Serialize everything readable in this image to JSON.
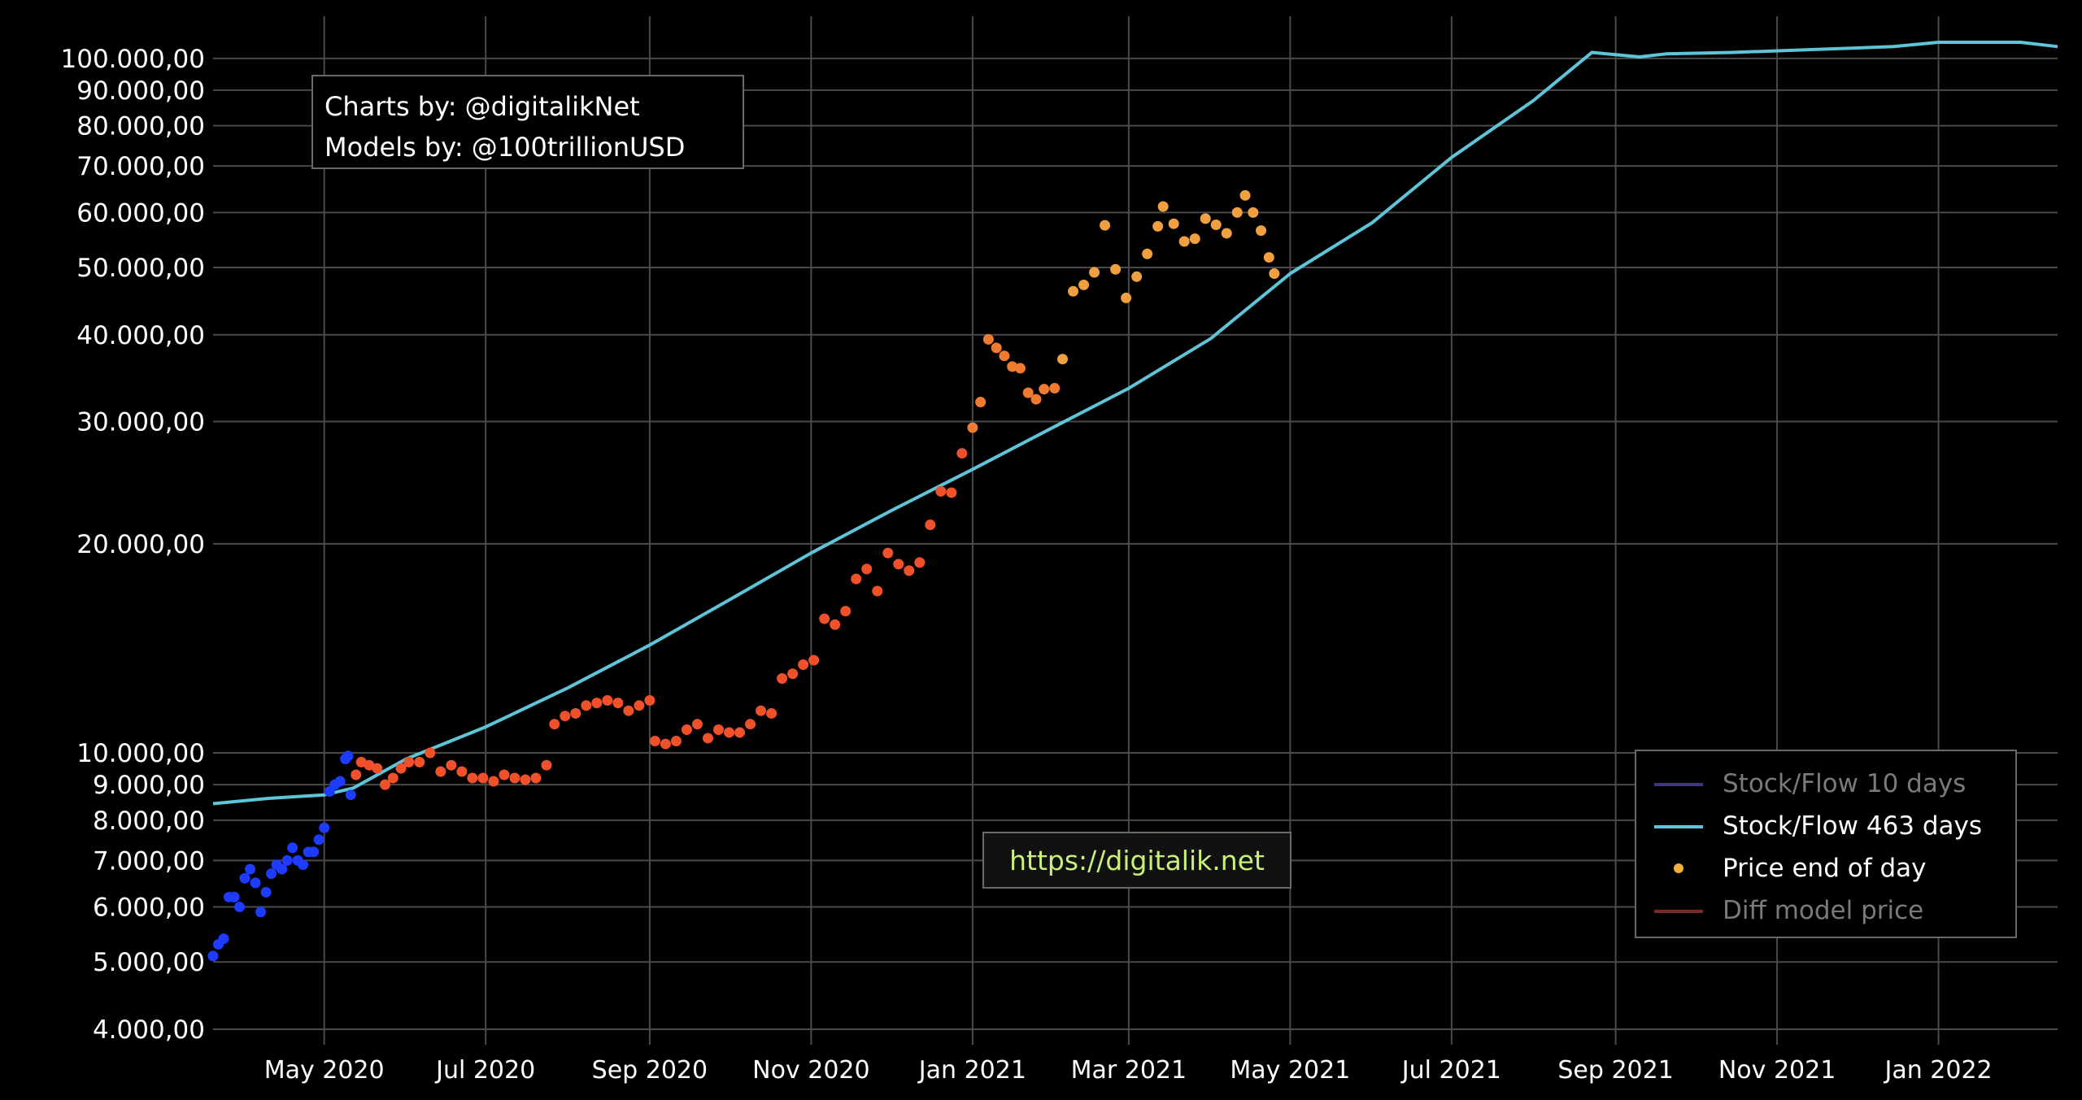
{
  "credits": {
    "charts_by": "Charts by: @digitalikNet",
    "models_by": "Models by: @100trillionUSD"
  },
  "watermark": {
    "url": "https://digitalik.net"
  },
  "legend": [
    {
      "label": "Stock/Flow 10 days",
      "color": "#3a3a7a",
      "kind": "line",
      "muted": true
    },
    {
      "label": "Stock/Flow 463 days",
      "color": "#5ec4d8",
      "kind": "line",
      "muted": false
    },
    {
      "label": "Price end of day",
      "color": "#f2b134",
      "kind": "dot",
      "muted": false
    },
    {
      "label": "Diff model price",
      "color": "#7a2a2a",
      "kind": "line",
      "muted": true
    }
  ],
  "chart_data": {
    "type": "scatter",
    "y_scale": "log",
    "xlim": [
      "2020-03-20",
      "2022-02-15"
    ],
    "ylim": [
      3800,
      115000
    ],
    "grid": true,
    "legend_position": "bottom-right",
    "x_ticks": [
      {
        "date": "2020-05-01",
        "label": "May 2020"
      },
      {
        "date": "2020-07-01",
        "label": "Jul 2020"
      },
      {
        "date": "2020-09-01",
        "label": "Sep 2020"
      },
      {
        "date": "2020-11-01",
        "label": "Nov 2020"
      },
      {
        "date": "2021-01-01",
        "label": "Jan 2021"
      },
      {
        "date": "2021-03-01",
        "label": "Mar 2021"
      },
      {
        "date": "2021-05-01",
        "label": "May 2021"
      },
      {
        "date": "2021-07-01",
        "label": "Jul 2021"
      },
      {
        "date": "2021-09-01",
        "label": "Sep 2021"
      },
      {
        "date": "2021-11-01",
        "label": "Nov 2021"
      },
      {
        "date": "2022-01-01",
        "label": "Jan 2022"
      }
    ],
    "y_ticks": [
      {
        "value": 100000,
        "label": "100.000,00"
      },
      {
        "value": 90000,
        "label": "90.000,00"
      },
      {
        "value": 80000,
        "label": "80.000,00"
      },
      {
        "value": 70000,
        "label": "70.000,00"
      },
      {
        "value": 60000,
        "label": "60.000,00"
      },
      {
        "value": 50000,
        "label": "50.000,00"
      },
      {
        "value": 40000,
        "label": "40.000,00"
      },
      {
        "value": 30000,
        "label": "30.000,00"
      },
      {
        "value": 20000,
        "label": "20.000,00"
      },
      {
        "value": 10000,
        "label": "10.000,00"
      },
      {
        "value": 9000,
        "label": "9.000,00"
      },
      {
        "value": 8000,
        "label": "8.000,00"
      },
      {
        "value": 7000,
        "label": "7.000,00"
      },
      {
        "value": 6000,
        "label": "6.000,00"
      },
      {
        "value": 5000,
        "label": "5.000,00"
      },
      {
        "value": 4000,
        "label": "4.000,00"
      }
    ],
    "model_line": {
      "name": "Stock/Flow 463 days",
      "color": "#5ec4d8",
      "points": [
        [
          "2020-03-20",
          8450
        ],
        [
          "2020-04-10",
          8600
        ],
        [
          "2020-05-01",
          8700
        ],
        [
          "2020-05-12",
          8900
        ],
        [
          "2020-06-01",
          9800
        ],
        [
          "2020-07-01",
          10900
        ],
        [
          "2020-08-01",
          12400
        ],
        [
          "2020-09-01",
          14300
        ],
        [
          "2020-10-01",
          16600
        ],
        [
          "2020-11-01",
          19400
        ],
        [
          "2020-12-01",
          22300
        ],
        [
          "2021-01-01",
          25600
        ],
        [
          "2021-02-01",
          29500
        ],
        [
          "2021-03-01",
          33500
        ],
        [
          "2021-04-01",
          39500
        ],
        [
          "2021-05-01",
          49000
        ],
        [
          "2021-06-01",
          58000
        ],
        [
          "2021-07-01",
          72000
        ],
        [
          "2021-08-01",
          87000
        ],
        [
          "2021-08-23",
          102000
        ],
        [
          "2021-09-10",
          100500
        ],
        [
          "2021-09-20",
          101500
        ],
        [
          "2021-10-15",
          102000
        ],
        [
          "2021-11-15",
          103000
        ],
        [
          "2021-12-15",
          104000
        ],
        [
          "2022-01-01",
          105500
        ],
        [
          "2022-02-01",
          105500
        ],
        [
          "2022-02-15",
          104000
        ]
      ]
    },
    "price": {
      "name": "Price end of day",
      "color_stops": [
        {
          "until": "2020-05-11",
          "color": "#1e3cff"
        },
        {
          "until": "2020-12-31",
          "color": "#f0502a"
        },
        {
          "until": "2021-02-01",
          "color": "#f07a30"
        },
        {
          "until": "2021-06-01",
          "color": "#f0a040"
        }
      ],
      "points": [
        [
          "2020-03-20",
          5100
        ],
        [
          "2020-03-22",
          5300
        ],
        [
          "2020-03-24",
          5400
        ],
        [
          "2020-03-26",
          6200
        ],
        [
          "2020-03-28",
          6200
        ],
        [
          "2020-03-30",
          6000
        ],
        [
          "2020-04-01",
          6600
        ],
        [
          "2020-04-03",
          6800
        ],
        [
          "2020-04-05",
          6500
        ],
        [
          "2020-04-07",
          5900
        ],
        [
          "2020-04-09",
          6300
        ],
        [
          "2020-04-11",
          6700
        ],
        [
          "2020-04-13",
          6900
        ],
        [
          "2020-04-15",
          6800
        ],
        [
          "2020-04-17",
          7000
        ],
        [
          "2020-04-19",
          7300
        ],
        [
          "2020-04-21",
          7000
        ],
        [
          "2020-04-23",
          6900
        ],
        [
          "2020-04-25",
          7200
        ],
        [
          "2020-04-27",
          7200
        ],
        [
          "2020-04-29",
          7500
        ],
        [
          "2020-05-01",
          7800
        ],
        [
          "2020-05-03",
          8800
        ],
        [
          "2020-05-05",
          9000
        ],
        [
          "2020-05-07",
          9100
        ],
        [
          "2020-05-09",
          9800
        ],
        [
          "2020-05-10",
          9900
        ],
        [
          "2020-05-11",
          8700
        ],
        [
          "2020-05-13",
          9300
        ],
        [
          "2020-05-15",
          9700
        ],
        [
          "2020-05-18",
          9600
        ],
        [
          "2020-05-21",
          9500
        ],
        [
          "2020-05-24",
          9000
        ],
        [
          "2020-05-27",
          9200
        ],
        [
          "2020-05-30",
          9500
        ],
        [
          "2020-06-02",
          9700
        ],
        [
          "2020-06-06",
          9700
        ],
        [
          "2020-06-10",
          10000
        ],
        [
          "2020-06-14",
          9400
        ],
        [
          "2020-06-18",
          9600
        ],
        [
          "2020-06-22",
          9400
        ],
        [
          "2020-06-26",
          9200
        ],
        [
          "2020-06-30",
          9200
        ],
        [
          "2020-07-04",
          9100
        ],
        [
          "2020-07-08",
          9300
        ],
        [
          "2020-07-12",
          9200
        ],
        [
          "2020-07-16",
          9150
        ],
        [
          "2020-07-20",
          9200
        ],
        [
          "2020-07-24",
          9600
        ],
        [
          "2020-07-27",
          11000
        ],
        [
          "2020-07-31",
          11300
        ],
        [
          "2020-08-04",
          11400
        ],
        [
          "2020-08-08",
          11700
        ],
        [
          "2020-08-12",
          11800
        ],
        [
          "2020-08-16",
          11900
        ],
        [
          "2020-08-20",
          11800
        ],
        [
          "2020-08-24",
          11500
        ],
        [
          "2020-08-28",
          11700
        ],
        [
          "2020-09-01",
          11900
        ],
        [
          "2020-09-03",
          10400
        ],
        [
          "2020-09-07",
          10300
        ],
        [
          "2020-09-11",
          10400
        ],
        [
          "2020-09-15",
          10800
        ],
        [
          "2020-09-19",
          11000
        ],
        [
          "2020-09-23",
          10500
        ],
        [
          "2020-09-27",
          10800
        ],
        [
          "2020-10-01",
          10700
        ],
        [
          "2020-10-05",
          10700
        ],
        [
          "2020-10-09",
          11000
        ],
        [
          "2020-10-13",
          11500
        ],
        [
          "2020-10-17",
          11400
        ],
        [
          "2020-10-21",
          12800
        ],
        [
          "2020-10-25",
          13000
        ],
        [
          "2020-10-29",
          13400
        ],
        [
          "2020-11-02",
          13600
        ],
        [
          "2020-11-06",
          15600
        ],
        [
          "2020-11-10",
          15300
        ],
        [
          "2020-11-14",
          16000
        ],
        [
          "2020-11-18",
          17800
        ],
        [
          "2020-11-22",
          18400
        ],
        [
          "2020-11-26",
          17100
        ],
        [
          "2020-11-30",
          19400
        ],
        [
          "2020-12-04",
          18700
        ],
        [
          "2020-12-08",
          18300
        ],
        [
          "2020-12-12",
          18800
        ],
        [
          "2020-12-16",
          21300
        ],
        [
          "2020-12-20",
          23800
        ],
        [
          "2020-12-24",
          23700
        ],
        [
          "2020-12-28",
          27000
        ],
        [
          "2021-01-01",
          29400
        ],
        [
          "2021-01-04",
          32000
        ],
        [
          "2021-01-07",
          39400
        ],
        [
          "2021-01-10",
          38300
        ],
        [
          "2021-01-13",
          37300
        ],
        [
          "2021-01-16",
          36000
        ],
        [
          "2021-01-19",
          35800
        ],
        [
          "2021-01-22",
          33000
        ],
        [
          "2021-01-25",
          32300
        ],
        [
          "2021-01-28",
          33400
        ],
        [
          "2021-02-01",
          33500
        ],
        [
          "2021-02-04",
          36900
        ],
        [
          "2021-02-08",
          46200
        ],
        [
          "2021-02-12",
          47200
        ],
        [
          "2021-02-16",
          49200
        ],
        [
          "2021-02-20",
          57500
        ],
        [
          "2021-02-24",
          49700
        ],
        [
          "2021-02-28",
          45200
        ],
        [
          "2021-03-04",
          48500
        ],
        [
          "2021-03-08",
          52300
        ],
        [
          "2021-03-12",
          57300
        ],
        [
          "2021-03-14",
          61200
        ],
        [
          "2021-03-18",
          57800
        ],
        [
          "2021-03-22",
          54500
        ],
        [
          "2021-03-26",
          55000
        ],
        [
          "2021-03-30",
          58800
        ],
        [
          "2021-04-03",
          57600
        ],
        [
          "2021-04-07",
          56000
        ],
        [
          "2021-04-11",
          60000
        ],
        [
          "2021-04-14",
          63500
        ],
        [
          "2021-04-17",
          60000
        ],
        [
          "2021-04-20",
          56500
        ],
        [
          "2021-04-23",
          51700
        ],
        [
          "2021-04-25",
          49000
        ]
      ]
    }
  }
}
